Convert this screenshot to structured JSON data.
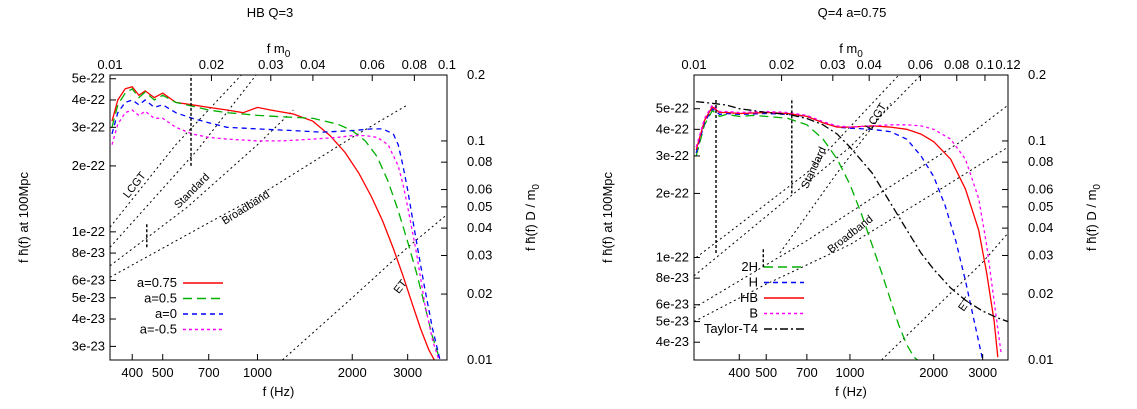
{
  "chart_data": [
    {
      "type": "line",
      "title": "HB Q=3",
      "xlabel": "f (Hz)",
      "ylabel": "f h̃(f) at 100Mpc",
      "x2label": "f m",
      "x2label_sub": "0",
      "y2label": "f h̃(f) D / m",
      "y2label_sub": "0",
      "x_scale": "log",
      "y_scale": "log",
      "xlim": [
        340,
        4000
      ],
      "ylim": [
        2.6e-23,
        5.2e-22
      ],
      "x2lim": [
        0.01,
        0.1
      ],
      "y2lim": [
        0.01,
        0.2
      ],
      "xticks": [
        400,
        500,
        700,
        1000,
        2000,
        3000
      ],
      "xticklabels": [
        "400",
        "500",
        "700",
        "1000",
        "2000",
        "3000"
      ],
      "yticks": [
        3e-23,
        4e-23,
        5e-23,
        6e-23,
        8e-23,
        1e-22,
        2e-22,
        3e-22,
        4e-22,
        5e-22
      ],
      "yticklabels": [
        "3e-23",
        "4e-23",
        "5e-23",
        "6e-23",
        "8e-23",
        "1e-22",
        "2e-22",
        "3e-22",
        "4e-22",
        "5e-22"
      ],
      "x2ticks": [
        0.01,
        0.02,
        0.03,
        0.04,
        0.06,
        0.08,
        0.1
      ],
      "x2ticklabels": [
        "0.01",
        "0.02",
        "0.03",
        "0.04",
        "0.06",
        "0.08",
        "0.1"
      ],
      "y2ticks": [
        0.01,
        0.02,
        0.03,
        0.04,
        0.05,
        0.06,
        0.08,
        0.1,
        0.2
      ],
      "y2ticklabels": [
        "0.01",
        "0.02",
        "0.03",
        "0.04",
        "0.05",
        "0.06",
        "0.08",
        "0.1",
        "0.2"
      ],
      "legend": "bottom-left",
      "grid": false,
      "series": [
        {
          "name": "a=0.75",
          "color": "#ff0000",
          "dash": "solid",
          "x": [
            345,
            360,
            380,
            400,
            420,
            440,
            470,
            500,
            550,
            620,
            700,
            800,
            900,
            1000,
            1100,
            1300,
            1500,
            1700,
            1900,
            2100,
            2300,
            2500,
            2700,
            2900,
            3100,
            3300,
            3500,
            3700
          ],
          "y": [
            3.2e-22,
            4e-22,
            4.5e-22,
            4.6e-22,
            4.2e-22,
            4.4e-22,
            4.1e-22,
            4.3e-22,
            3.9e-22,
            3.8e-22,
            3.7e-22,
            3.6e-22,
            3.5e-22,
            3.7e-22,
            3.6e-22,
            3.45e-22,
            3.2e-22,
            2.75e-22,
            2.3e-22,
            1.85e-22,
            1.45e-22,
            1.12e-22,
            8.4e-23,
            6.3e-23,
            4.7e-23,
            3.6e-23,
            2.9e-23,
            2.5e-23
          ]
        },
        {
          "name": "a=0.5",
          "color": "#00b000",
          "dash": "long",
          "x": [
            345,
            360,
            380,
            400,
            420,
            440,
            470,
            500,
            550,
            620,
            700,
            800,
            900,
            1000,
            1200,
            1500,
            1800,
            2000,
            2200,
            2400,
            2600,
            2800,
            3000,
            3200,
            3400,
            3600,
            3800
          ],
          "y": [
            3e-22,
            3.8e-22,
            4.3e-22,
            4.5e-22,
            4.1e-22,
            4.35e-22,
            4e-22,
            4.2e-22,
            3.9e-22,
            3.75e-22,
            3.6e-22,
            3.5e-22,
            3.45e-22,
            3.4e-22,
            3.35e-22,
            3.3e-22,
            3.1e-22,
            2.9e-22,
            2.6e-22,
            2.2e-22,
            1.7e-22,
            1.25e-22,
            9e-23,
            6.5e-23,
            4.6e-23,
            3.3e-23,
            2.6e-23
          ]
        },
        {
          "name": "a=0",
          "color": "#0000ff",
          "dash": "medium",
          "x": [
            345,
            360,
            380,
            400,
            420,
            440,
            470,
            500,
            550,
            620,
            700,
            800,
            1000,
            1300,
            1600,
            2000,
            2300,
            2500,
            2700,
            2800,
            2900,
            3000,
            3200,
            3400,
            3600,
            3800
          ],
          "y": [
            2.8e-22,
            3.5e-22,
            3.9e-22,
            4e-22,
            3.8e-22,
            4e-22,
            3.7e-22,
            3.8e-22,
            3.5e-22,
            3.3e-22,
            3.15e-22,
            3e-22,
            2.95e-22,
            2.9e-22,
            2.85e-22,
            2.9e-22,
            2.95e-22,
            2.95e-22,
            2.8e-22,
            2.5e-22,
            2e-22,
            1.55e-22,
            9e-23,
            5.5e-23,
            3.6e-23,
            2.6e-23
          ]
        },
        {
          "name": "a=-0.5",
          "color": "#ff00ff",
          "dash": "short",
          "x": [
            345,
            360,
            380,
            400,
            420,
            440,
            470,
            500,
            550,
            620,
            700,
            800,
            1000,
            1200,
            1500,
            1800,
            2000,
            2200,
            2400,
            2600,
            2800,
            2900,
            3000,
            3200,
            3400,
            3600,
            3800
          ],
          "y": [
            2.5e-22,
            3.1e-22,
            3.5e-22,
            3.6e-22,
            3.4e-22,
            3.55e-22,
            3.3e-22,
            3.3e-22,
            3e-22,
            2.8e-22,
            2.7e-22,
            2.65e-22,
            2.6e-22,
            2.6e-22,
            2.65e-22,
            2.7e-22,
            2.75e-22,
            2.75e-22,
            2.7e-22,
            2.5e-22,
            2e-22,
            1.65e-22,
            1.3e-22,
            8e-23,
            4.7e-23,
            3.2e-23,
            2.5e-23
          ]
        }
      ],
      "noise_curves": [
        {
          "label": "LCGT",
          "x": [
            340,
            550,
            900
          ],
          "y": [
            1.05e-22,
            2.5e-22,
            5.3e-22
          ]
        },
        {
          "label": "",
          "x": [
            340,
            650,
            1000
          ],
          "y": [
            8.5e-23,
            2.4e-22,
            5.3e-22
          ]
        },
        {
          "label": "Standard",
          "x": [
            340,
            600,
            1000,
            1300
          ],
          "y": [
            7e-23,
            1.3e-22,
            2.5e-22,
            3.6e-22
          ]
        },
        {
          "label": "Broadband",
          "x": [
            340,
            700,
            1000,
            2000,
            3000
          ],
          "y": [
            6.2e-23,
            1.1e-22,
            1.45e-22,
            2.7e-22,
            3.8e-22
          ]
        },
        {
          "label": "ET",
          "x": [
            1200,
            2000,
            3000,
            4000
          ],
          "y": [
            2.6e-23,
            5e-23,
            8.5e-23,
            1.2e-22
          ]
        }
      ],
      "spikes": [
        {
          "x": 615,
          "y": [
            2e-22,
            5.2e-22
          ]
        },
        {
          "x": 445,
          "y": [
            8.5e-23,
            1.1e-22
          ]
        }
      ],
      "annotations": [
        {
          "text": "LCGT",
          "x": 415,
          "y": 1.6e-22,
          "angle": -52
        },
        {
          "text": "Standard",
          "x": 630,
          "y": 1.5e-22,
          "angle": -45
        },
        {
          "text": "Broadband",
          "x": 930,
          "y": 1.25e-22,
          "angle": -32
        },
        {
          "text": "ET",
          "x": 2900,
          "y": 5.5e-23,
          "angle": -52
        }
      ]
    },
    {
      "type": "line",
      "title": "Q=4 a=0.75",
      "xlabel": "f (Hz)",
      "ylabel": "f h̃(f) at 100Mpc",
      "x2label": "f m",
      "x2label_sub": "0",
      "y2label": "f h̃(f) D / m",
      "y2label_sub": "0",
      "x_scale": "log",
      "y_scale": "log",
      "xlim": [
        275,
        3700
      ],
      "ylim": [
        3.3e-23,
        7.2e-22
      ],
      "x2lim": [
        0.01,
        0.12
      ],
      "y2lim": [
        0.01,
        0.2
      ],
      "xticks": [
        400,
        500,
        700,
        1000,
        2000,
        3000
      ],
      "xticklabels": [
        "400",
        "500",
        "700",
        "1000",
        "2000",
        "3000"
      ],
      "yticks": [
        4e-23,
        5e-23,
        6e-23,
        8e-23,
        1e-22,
        2e-22,
        3e-22,
        4e-22,
        5e-22
      ],
      "yticklabels": [
        "4e-23",
        "5e-23",
        "6e-23",
        "8e-23",
        "1e-22",
        "2e-22",
        "3e-22",
        "4e-22",
        "5e-22"
      ],
      "x2ticks": [
        0.01,
        0.02,
        0.03,
        0.04,
        0.06,
        0.08,
        0.1,
        0.12
      ],
      "x2ticklabels": [
        "0.01",
        "0.02",
        "0.03",
        "0.04",
        "0.06",
        "0.08",
        "0.1",
        "0.12"
      ],
      "y2ticks": [
        0.01,
        0.02,
        0.03,
        0.04,
        0.05,
        0.06,
        0.08,
        0.1,
        0.2
      ],
      "y2ticklabels": [
        "0.01",
        "0.02",
        "0.03",
        "0.04",
        "0.05",
        "0.06",
        "0.08",
        "0.1",
        "0.2"
      ],
      "legend": "bottom-left",
      "grid": false,
      "series": [
        {
          "name": "2H",
          "color": "#00b000",
          "dash": "long",
          "x": [
            280,
            300,
            320,
            340,
            360,
            400,
            450,
            500,
            550,
            600,
            700,
            800,
            900,
            1000,
            1100,
            1200,
            1300,
            1400,
            1500,
            1600,
            1700,
            1800
          ],
          "y": [
            3e-22,
            4.2e-22,
            4.9e-22,
            4.6e-22,
            4.7e-22,
            4.6e-22,
            4.65e-22,
            4.6e-22,
            4.55e-22,
            4.5e-22,
            4.2e-22,
            3.6e-22,
            2.9e-22,
            2.2e-22,
            1.6e-22,
            1.15e-22,
            8.5e-23,
            6.3e-23,
            4.8e-23,
            3.9e-23,
            3.4e-23,
            3.2e-23
          ]
        },
        {
          "name": "H",
          "color": "#0000ff",
          "dash": "medium",
          "x": [
            280,
            300,
            320,
            340,
            360,
            400,
            500,
            600,
            700,
            800,
            900,
            1000,
            1200,
            1400,
            1600,
            1800,
            2000,
            2200,
            2400,
            2600,
            2800,
            3000
          ],
          "y": [
            3.1e-22,
            4.3e-22,
            5e-22,
            4.7e-22,
            4.75e-22,
            4.7e-22,
            4.75e-22,
            4.7e-22,
            4.6e-22,
            4.3e-22,
            4.1e-22,
            4.05e-22,
            4e-22,
            3.9e-22,
            3.6e-22,
            3e-22,
            2.4e-22,
            1.75e-22,
            1.2e-22,
            7.8e-23,
            5e-23,
            3.3e-23
          ]
        },
        {
          "name": "HB",
          "color": "#ff0000",
          "dash": "solid",
          "x": [
            280,
            300,
            320,
            340,
            360,
            400,
            500,
            600,
            700,
            800,
            900,
            1000,
            1200,
            1400,
            1600,
            1800,
            2000,
            2300,
            2600,
            2900,
            3100,
            3300,
            3400
          ],
          "y": [
            3.2e-22,
            4.4e-22,
            5.1e-22,
            4.8e-22,
            4.8e-22,
            4.75e-22,
            4.8e-22,
            4.75e-22,
            4.6e-22,
            4.3e-22,
            4.1e-22,
            4.1e-22,
            4.15e-22,
            4.1e-22,
            4e-22,
            3.8e-22,
            3.5e-22,
            2.9e-22,
            2.1e-22,
            1.35e-22,
            8.5e-23,
            5e-23,
            3.4e-23
          ]
        },
        {
          "name": "B",
          "color": "#ff00ff",
          "dash": "short",
          "x": [
            280,
            300,
            320,
            340,
            360,
            400,
            500,
            600,
            700,
            800,
            900,
            1000,
            1200,
            1400,
            1600,
            1800,
            2000,
            2300,
            2600,
            2900,
            3100,
            3300,
            3500
          ],
          "y": [
            3.3e-22,
            4.5e-22,
            5.2e-22,
            4.85e-22,
            4.85e-22,
            4.8e-22,
            4.85e-22,
            4.8e-22,
            4.65e-22,
            4.35e-22,
            4.15e-22,
            4.1e-22,
            4.15e-22,
            4.2e-22,
            4.2e-22,
            4.15e-22,
            4e-22,
            3.6e-22,
            2.9e-22,
            1.9e-22,
            1.15e-22,
            6.2e-23,
            3.5e-23
          ]
        },
        {
          "name": "Taylor-T4",
          "color": "#000000",
          "dash": "dashdot",
          "x": [
            280,
            320,
            360,
            400,
            450,
            500,
            550,
            600,
            700,
            800,
            900,
            1000,
            1200,
            1400,
            1600,
            1800,
            2000,
            2300,
            2600,
            3000,
            3400,
            3700
          ],
          "y": [
            5.4e-22,
            5.3e-22,
            5.2e-22,
            5e-22,
            4.9e-22,
            4.8e-22,
            4.75e-22,
            4.7e-22,
            4.5e-22,
            4.2e-22,
            3.8e-22,
            3.3e-22,
            2.5e-22,
            1.8e-22,
            1.35e-22,
            1.05e-22,
            8.8e-23,
            7.2e-23,
            6.3e-23,
            5.6e-23,
            5.2e-23,
            5e-23
          ]
        }
      ],
      "noise_curves": [
        {
          "label": "LCGT",
          "x": [
            560,
            900,
            1400
          ],
          "y": [
            1.05e-22,
            2.5e-22,
            5.3e-22
          ]
        },
        {
          "label": "",
          "x": [
            280,
            700,
            1500
          ],
          "y": [
            1e-22,
            2.5e-22,
            7.2e-22
          ]
        },
        {
          "label": "Standard",
          "x": [
            275,
            600,
            1000,
            1800
          ],
          "y": [
            8.2e-23,
            1.9e-22,
            3.3e-22,
            7.2e-22
          ]
        },
        {
          "label": "Broadband",
          "x": [
            275,
            700,
            1200,
            2500,
            3700
          ],
          "y": [
            5.8e-23,
            1.2e-22,
            1.9e-22,
            3.5e-22,
            5.2e-22
          ]
        },
        {
          "label": "",
          "x": [
            275,
            500,
            1000,
            2000,
            3700
          ],
          "y": [
            5e-23,
            7.5e-23,
            1.15e-22,
            2e-22,
            3.3e-22
          ]
        },
        {
          "label": "ET",
          "x": [
            1300,
            2000,
            3000,
            3700
          ],
          "y": [
            3.3e-23,
            5.7e-23,
            9.5e-23,
            1.3e-22
          ]
        }
      ],
      "spikes": [
        {
          "x": 330,
          "y": [
            1.05e-22,
            5.6e-22
          ]
        },
        {
          "x": 618,
          "y": [
            2e-22,
            5.6e-22
          ]
        },
        {
          "x": 488,
          "y": [
            9e-23,
            1.1e-22
          ]
        }
      ],
      "annotations": [
        {
          "text": "LCGT",
          "x": 1270,
          "y": 4.5e-22,
          "angle": -58
        },
        {
          "text": "Standard",
          "x": 760,
          "y": 2.6e-22,
          "angle": -65
        },
        {
          "text": "Broadband",
          "x": 1020,
          "y": 1.25e-22,
          "angle": -38
        },
        {
          "text": "ET",
          "x": 2650,
          "y": 5.9e-23,
          "angle": -55
        }
      ]
    }
  ]
}
